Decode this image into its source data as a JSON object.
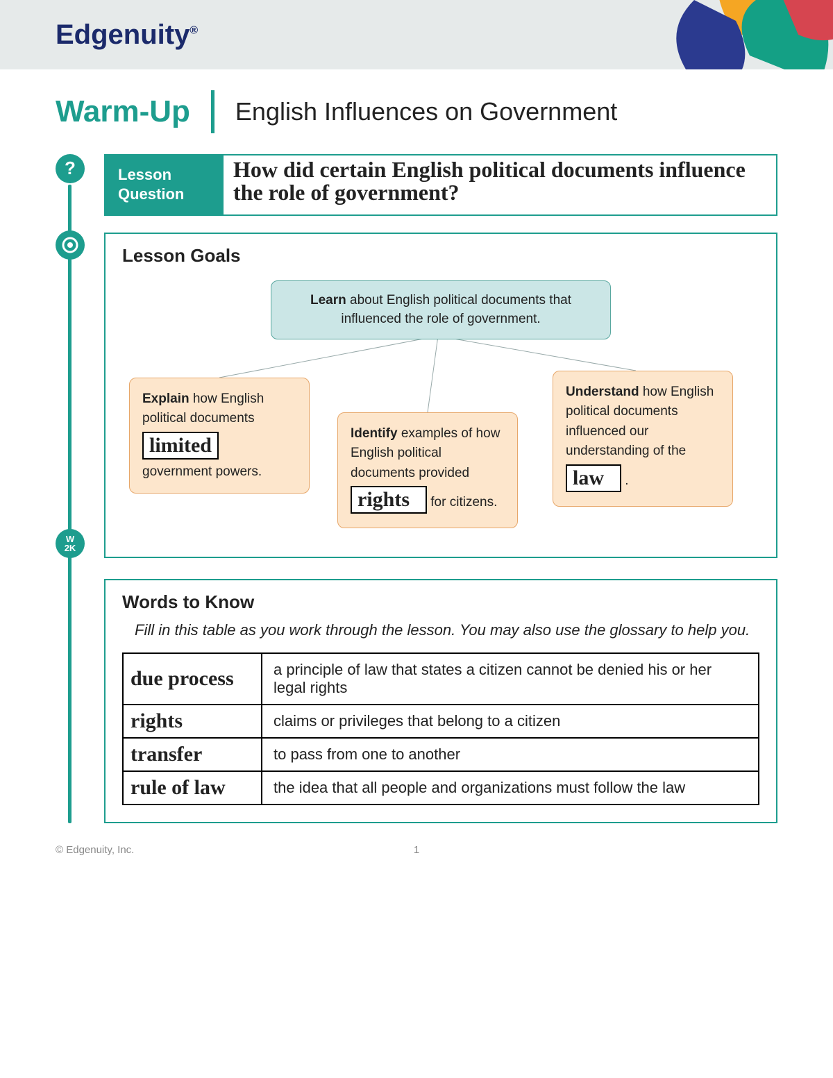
{
  "brand": "Edgenuity",
  "brand_color": "#1b2a6b",
  "header_bg": "#e6eaea",
  "accent": "#1d9d8e",
  "petal_colors": [
    "#f5a623",
    "#14a085",
    "#4a5fd4",
    "#2b3a8f",
    "#d64550"
  ],
  "title": {
    "left": "Warm-Up",
    "right": "English Influences on Government"
  },
  "timeline_icons": {
    "question": "?",
    "target": "◎",
    "w2k": "W\n2K"
  },
  "lesson_question": {
    "label": "Lesson Question",
    "answer": "How did certain English political documents influence the role of government?"
  },
  "lesson_goals": {
    "title": "Lesson Goals",
    "top": {
      "bold": "Learn",
      "rest": " about English political documents that influenced the role of government."
    },
    "left": {
      "bold": "Explain",
      "pre": " how English political documents ",
      "blank": "limited",
      "post": " government powers."
    },
    "mid": {
      "bold": "Identify",
      "pre": " examples of how English political documents provided ",
      "blank": "rights",
      "post": " for citizens."
    },
    "right": {
      "bold": "Understand",
      "pre": " how English political documents influenced our understanding of the ",
      "blank": "law",
      "post": "."
    },
    "top_bg": "#cbe6e6",
    "top_border": "#58a79f",
    "child_bg": "#fde6cc",
    "child_border": "#e7a76a"
  },
  "words_to_know": {
    "title": "Words to Know",
    "intro": "Fill in this table as you work through the lesson. You may also use the glossary to help you.",
    "rows": [
      {
        "term": "due process",
        "def": "a principle of law that states a citizen cannot be denied his or her legal rights"
      },
      {
        "term": "rights",
        "def": "claims or privileges that belong to a citizen"
      },
      {
        "term": "transfer",
        "def": "to pass from one to another"
      },
      {
        "term": "rule of law",
        "def": "the idea that all people and organizations must follow the law"
      }
    ]
  },
  "footer": {
    "copyright": "© Edgenuity, Inc.",
    "page": "1"
  }
}
